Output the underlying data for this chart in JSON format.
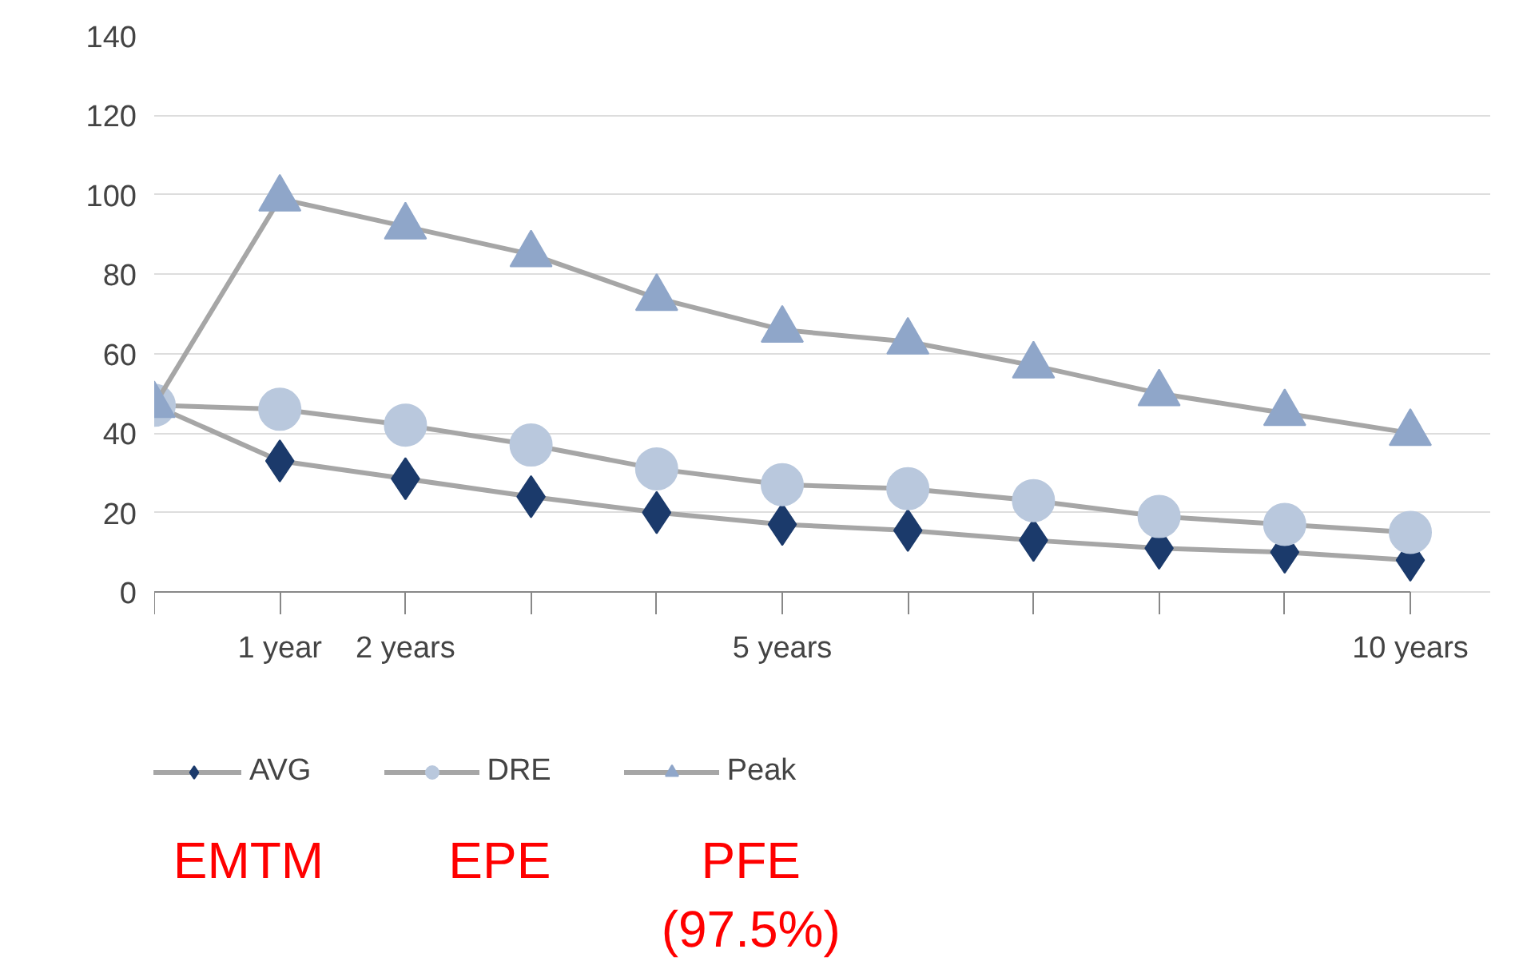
{
  "chart_data": {
    "type": "line",
    "x": [
      0,
      1,
      2,
      3,
      4,
      5,
      6,
      7,
      8,
      9,
      10
    ],
    "series": [
      {
        "name": "AVG",
        "color": "#1b3a6b",
        "marker": "diamond",
        "values": [
          47,
          33,
          28.5,
          24,
          20,
          17,
          15.5,
          13,
          11,
          10,
          8
        ]
      },
      {
        "name": "DRE",
        "color": "#b9c8dd",
        "marker": "circle",
        "values": [
          47,
          46,
          42,
          37,
          31,
          27,
          26,
          23,
          19,
          17,
          15
        ]
      },
      {
        "name": "Peak",
        "color": "#8fa6c9",
        "marker": "triangle",
        "values": [
          47,
          99,
          92,
          85,
          74,
          66,
          63,
          57,
          50,
          45,
          40
        ]
      }
    ],
    "xlim": [
      0,
      10
    ],
    "xticks": [
      {
        "value": 0,
        "label": null
      },
      {
        "value": 1,
        "label": "1 year"
      },
      {
        "value": 2,
        "label": "2 years"
      },
      {
        "value": 3,
        "label": null
      },
      {
        "value": 4,
        "label": null
      },
      {
        "value": 5,
        "label": "5 years"
      },
      {
        "value": 6,
        "label": null
      },
      {
        "value": 7,
        "label": null
      },
      {
        "value": 8,
        "label": null
      },
      {
        "value": 9,
        "label": null
      },
      {
        "value": 10,
        "label": "10 years"
      }
    ],
    "ylim": [
      0,
      140
    ],
    "yticks": [
      0,
      20,
      40,
      60,
      80,
      100,
      120,
      140
    ],
    "grid": "y",
    "legend": "bottom",
    "line_style": "solid",
    "annotations": [
      "EMTM",
      "EPE",
      "PFE (97.5%)"
    ]
  }
}
